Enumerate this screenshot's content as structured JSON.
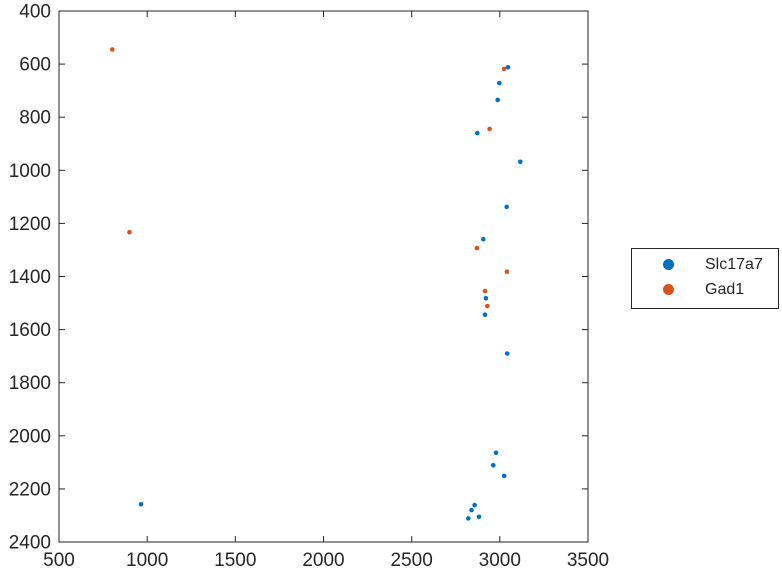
{
  "chart_data": {
    "type": "scatter",
    "title": "",
    "xlabel": "",
    "ylabel": "",
    "xlim": [
      500,
      3500
    ],
    "ylim": [
      400,
      2400
    ],
    "y_axis_reversed": true,
    "grid": false,
    "axis_color": "#262626",
    "background_color": "#ffffff",
    "legend_position": "right-outside",
    "xticks": [
      500,
      1000,
      1500,
      2000,
      2500,
      3000,
      3500
    ],
    "yticks": [
      400,
      600,
      800,
      1000,
      1200,
      1400,
      1600,
      1800,
      2000,
      2200,
      2400
    ],
    "series": [
      {
        "name": "Slc17a7",
        "color": "#0072BD",
        "points": [
          [
            3046,
            612
          ],
          [
            2997,
            671
          ],
          [
            2988,
            735
          ],
          [
            2872,
            860
          ],
          [
            3116,
            968
          ],
          [
            3039,
            1138
          ],
          [
            2906,
            1260
          ],
          [
            2921,
            1482
          ],
          [
            2916,
            1544
          ],
          [
            3042,
            1690
          ],
          [
            2978,
            2064
          ],
          [
            2963,
            2111
          ],
          [
            3025,
            2151
          ],
          [
            2857,
            2261
          ],
          [
            2840,
            2280
          ],
          [
            2882,
            2305
          ],
          [
            2821,
            2311
          ],
          [
            965,
            2258
          ]
        ]
      },
      {
        "name": "Gad1",
        "color": "#D95319",
        "points": [
          [
            802,
            545
          ],
          [
            3024,
            618
          ],
          [
            2942,
            844
          ],
          [
            900,
            1233
          ],
          [
            2870,
            1293
          ],
          [
            3040,
            1382
          ],
          [
            2916,
            1455
          ],
          [
            2929,
            1511
          ]
        ]
      }
    ]
  }
}
